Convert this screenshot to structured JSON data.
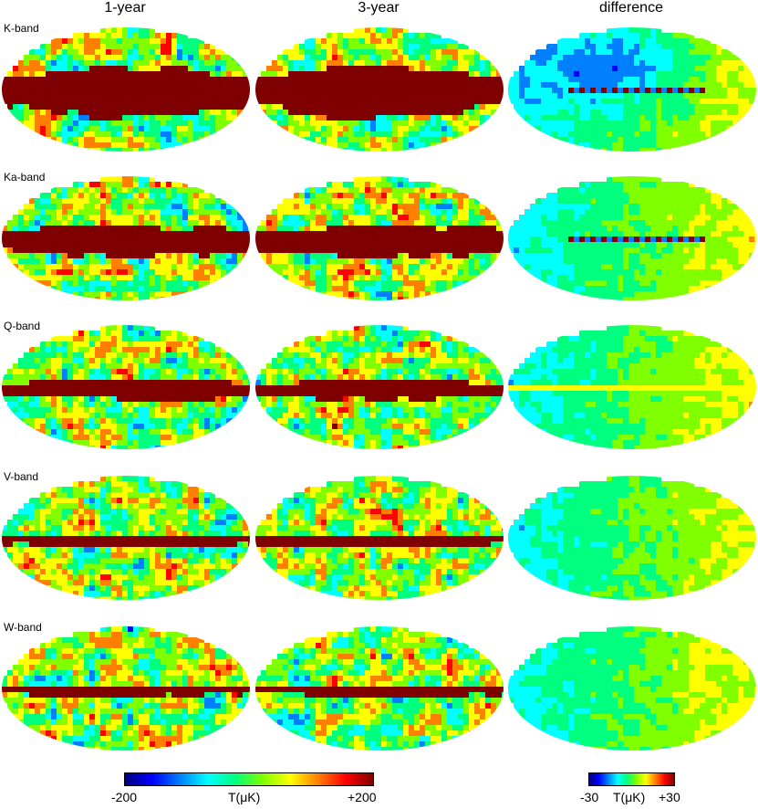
{
  "columns": [
    "1-year",
    "3-year",
    "difference"
  ],
  "bands": [
    "K-band",
    "Ka-band",
    "Q-band",
    "V-band",
    "W-band"
  ],
  "colorbars": {
    "main": {
      "min": "-200",
      "unit": "T(μK)",
      "max": "+200"
    },
    "difference": {
      "min": "-30",
      "unit": "T(μK)",
      "max": "+30"
    }
  },
  "colormap": [
    "#00007f",
    "#0000ff",
    "#007fff",
    "#00ffff",
    "#00ff7f",
    "#7fff00",
    "#ffff00",
    "#ff7f00",
    "#ff0000",
    "#7f0000"
  ]
}
